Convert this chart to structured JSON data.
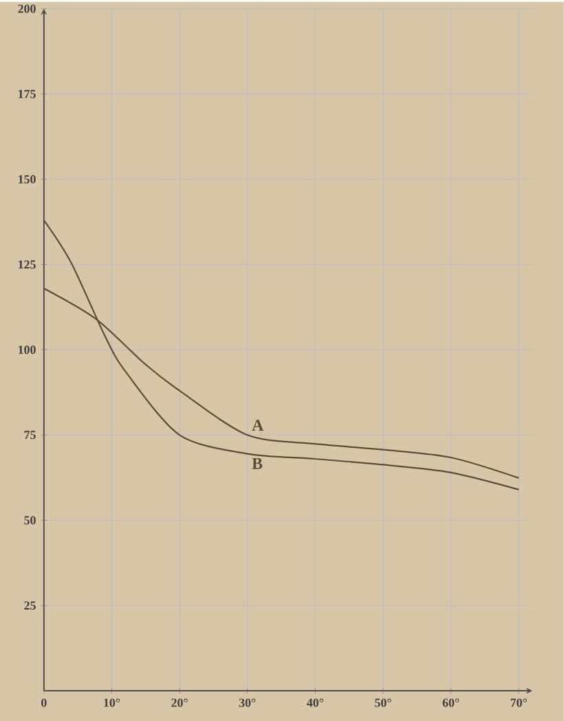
{
  "chart_data": {
    "type": "line",
    "x": [
      0,
      7.7,
      14.8,
      20,
      30,
      40,
      50,
      60,
      70
    ],
    "series": [
      {
        "name": "A",
        "color": "#5a4c3c",
        "values": [
          118,
          109,
          96,
          88,
          75,
          72.4,
          70.7,
          68.4,
          62.4
        ]
      },
      {
        "name": "B",
        "color": "#5a4c3c",
        "x": [
          0,
          4,
          9,
          12,
          20,
          30,
          40,
          50,
          60,
          70
        ],
        "values": [
          138,
          125.6,
          104,
          93.7,
          75,
          69.5,
          68,
          66.3,
          64,
          59
        ]
      }
    ],
    "xlim": [
      0,
      72
    ],
    "xticks": [
      {
        "value": 0,
        "label": "0"
      },
      {
        "value": 10,
        "label": "10°"
      },
      {
        "value": 20,
        "label": "20°"
      },
      {
        "value": 30,
        "label": "30°"
      },
      {
        "value": 40,
        "label": "40°"
      },
      {
        "value": 50,
        "label": "50°"
      },
      {
        "value": 60,
        "label": "60°"
      },
      {
        "value": 70,
        "label": "70°"
      }
    ],
    "ylim": [
      0,
      200
    ],
    "yticks": [
      25,
      50,
      75,
      100,
      125,
      150,
      175,
      200
    ],
    "grid": true,
    "marker": "none",
    "line_style": "solid",
    "legend": false
  }
}
